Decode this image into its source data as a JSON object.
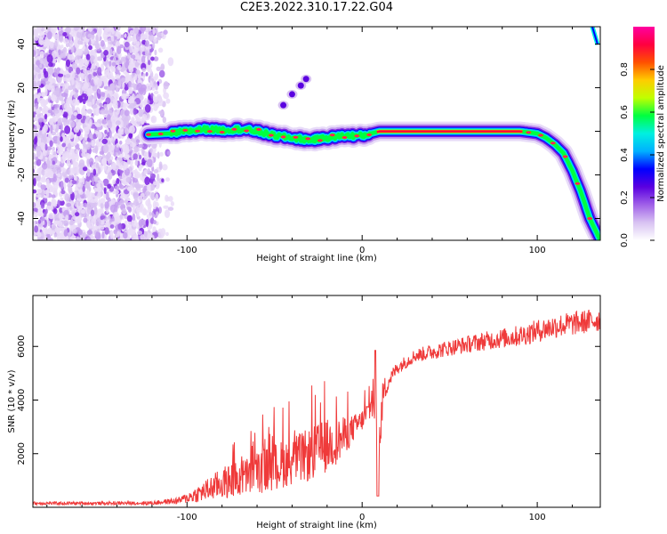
{
  "title": "C2E3.2022.310.17.22.G04",
  "colors": {
    "snr_line": "#ef3a3a",
    "colormap": [
      "#ffffff",
      "#d8c2f2",
      "#a060e8",
      "#5a00e0",
      "#0000ff",
      "#00b0ff",
      "#00f0e0",
      "#00ff40",
      "#c0ff00",
      "#ffcc00",
      "#ff5000",
      "#ff0040",
      "#ff00a0"
    ]
  },
  "chart_data": [
    {
      "type": "heatmap",
      "title": "C2E3.2022.310.17.22.G04",
      "xlabel": "Height of straight line (km)",
      "ylabel": "Frequency (Hz)",
      "xlim": [
        -188,
        136
      ],
      "ylim": [
        -50,
        48
      ],
      "xticks": [
        -100,
        0,
        100
      ],
      "yticks": [
        -40,
        -20,
        0,
        20,
        40
      ],
      "colorbar": {
        "label": "Normalized spectral amplitude",
        "range": [
          0.0,
          1.0
        ],
        "ticks": [
          0.0,
          0.2,
          0.4,
          0.6,
          0.8
        ]
      },
      "noise_region": {
        "x": [
          -188,
          -108
        ],
        "freq": [
          -50,
          48
        ]
      },
      "signal_track": {
        "x": [
          -122,
          -110,
          -100,
          -90,
          -80,
          -70,
          -60,
          -50,
          -40,
          -30,
          -20,
          -10,
          0,
          10,
          30,
          50,
          70,
          90,
          100,
          105,
          110,
          115,
          120,
          125,
          130,
          136
        ],
        "freq": [
          -1.5,
          -1,
          0,
          1,
          0.5,
          1,
          0,
          -2,
          -3,
          -4,
          -3,
          -2,
          -2,
          0,
          0,
          0,
          0,
          0,
          -1,
          -3,
          -6,
          -10,
          -18,
          -28,
          -40,
          -50
        ]
      },
      "secondary_blobs": {
        "x": [
          -45,
          -40,
          -35,
          -32
        ],
        "freq": [
          12,
          17,
          21,
          24
        ]
      }
    },
    {
      "type": "line",
      "xlabel": "Height of straight line (km)",
      "ylabel": "SNR (10 * v/v)",
      "xlim": [
        -188,
        136
      ],
      "ylim": [
        0,
        7900
      ],
      "xticks": [
        -100,
        0,
        100
      ],
      "yticks": [
        2000,
        4000,
        6000
      ],
      "series": [
        {
          "x": [
            -188,
            -150,
            -120,
            -105,
            -100,
            -90,
            -80,
            -70,
            -60,
            -50,
            -40,
            -30,
            -20,
            -12,
            -5,
            0,
            5,
            8,
            10,
            12,
            15,
            20,
            30,
            40,
            50,
            70,
            90,
            110,
            136
          ],
          "values": [
            150,
            150,
            160,
            250,
            350,
            600,
            900,
            1050,
            1300,
            1500,
            1750,
            1950,
            2300,
            2550,
            2950,
            3250,
            3700,
            3600,
            2500,
            4250,
            4700,
            5200,
            5650,
            5800,
            5950,
            6200,
            6400,
            6750,
            7000
          ],
          "noise": [
            60,
            60,
            70,
            120,
            200,
            400,
            600,
            700,
            800,
            900,
            900,
            1000,
            1000,
            800,
            500,
            400,
            500,
            900,
            900,
            600,
            300,
            250,
            250,
            300,
            300,
            350,
            400,
            450,
            450
          ]
        }
      ],
      "grid": false
    }
  ]
}
